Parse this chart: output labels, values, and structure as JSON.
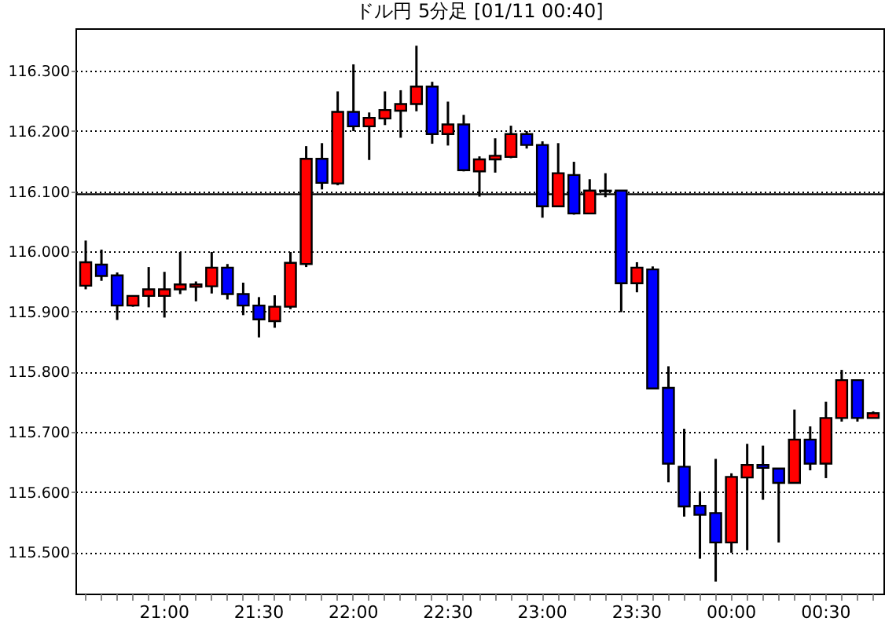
{
  "chart_data": {
    "type": "candlestick",
    "title": "ドル円 5分足 [01/11 00:40]",
    "categories": [
      null,
      null,
      null,
      null,
      null,
      "21:00",
      null,
      null,
      null,
      null,
      null,
      "21:30",
      null,
      null,
      null,
      null,
      null,
      "22:00",
      null,
      null,
      null,
      null,
      null,
      "22:30",
      null,
      null,
      null,
      null,
      null,
      "23:00",
      null,
      null,
      null,
      null,
      null,
      "23:30",
      null,
      null,
      null,
      null,
      null,
      "00:00",
      null,
      null,
      null,
      null,
      null,
      "00:30",
      null,
      null,
      null
    ],
    "ohlc": [
      [
        115.943,
        116.018,
        115.937,
        115.982
      ],
      [
        115.978,
        116.003,
        115.951,
        115.959
      ],
      [
        115.96,
        115.965,
        115.886,
        115.91
      ],
      [
        115.91,
        115.926,
        115.908,
        115.926
      ],
      [
        115.926,
        115.974,
        115.907,
        115.937
      ],
      [
        115.926,
        115.966,
        115.89,
        115.937
      ],
      [
        115.937,
        115.999,
        115.929,
        115.945
      ],
      [
        115.941,
        115.95,
        115.917,
        115.945
      ],
      [
        115.942,
        115.999,
        115.93,
        115.973
      ],
      [
        115.973,
        115.979,
        115.92,
        115.929
      ],
      [
        115.929,
        115.948,
        115.894,
        115.91
      ],
      [
        115.91,
        115.924,
        115.857,
        115.887
      ],
      [
        115.884,
        115.927,
        115.873,
        115.908
      ],
      [
        115.908,
        115.999,
        115.904,
        115.981
      ],
      [
        115.979,
        116.175,
        115.974,
        116.154
      ],
      [
        116.154,
        116.18,
        116.103,
        116.114
      ],
      [
        116.113,
        116.266,
        116.11,
        116.232
      ],
      [
        116.232,
        116.311,
        116.2,
        116.208
      ],
      [
        116.208,
        116.231,
        116.152,
        116.222
      ],
      [
        116.221,
        116.266,
        116.21,
        116.235
      ],
      [
        116.234,
        116.268,
        116.189,
        116.245
      ],
      [
        116.245,
        116.342,
        116.233,
        116.274
      ],
      [
        116.274,
        116.282,
        116.179,
        116.195
      ],
      [
        116.195,
        116.249,
        116.176,
        116.211
      ],
      [
        116.211,
        116.227,
        116.133,
        116.135
      ],
      [
        116.133,
        116.158,
        116.091,
        116.153
      ],
      [
        116.153,
        116.188,
        116.131,
        116.159
      ],
      [
        116.157,
        116.209,
        116.155,
        116.195
      ],
      [
        116.195,
        116.2,
        116.171,
        116.177
      ],
      [
        116.177,
        116.183,
        116.056,
        116.075
      ],
      [
        116.075,
        116.18,
        116.075,
        116.13
      ],
      [
        116.127,
        116.149,
        116.061,
        116.063
      ],
      [
        116.063,
        116.12,
        116.063,
        116.101
      ],
      [
        116.1,
        116.13,
        116.09,
        116.101
      ],
      [
        116.101,
        116.101,
        115.899,
        115.947
      ],
      [
        115.947,
        115.982,
        115.932,
        115.973
      ],
      [
        115.97,
        115.975,
        115.772,
        115.772
      ],
      [
        115.773,
        115.809,
        115.616,
        115.647
      ],
      [
        115.642,
        115.705,
        115.559,
        115.576
      ],
      [
        115.577,
        115.601,
        115.489,
        115.562
      ],
      [
        115.565,
        115.655,
        115.451,
        115.516
      ],
      [
        115.516,
        115.631,
        115.499,
        115.625
      ],
      [
        115.624,
        115.68,
        115.503,
        115.645
      ],
      [
        115.645,
        115.677,
        115.587,
        115.64
      ],
      [
        115.639,
        115.639,
        115.516,
        115.615
      ],
      [
        115.615,
        115.737,
        115.615,
        115.687
      ],
      [
        115.687,
        115.709,
        115.636,
        115.647
      ],
      [
        115.647,
        115.75,
        115.623,
        115.723
      ],
      [
        115.723,
        115.803,
        115.717,
        115.786
      ],
      [
        115.786,
        115.786,
        115.717,
        115.723
      ],
      [
        115.723,
        115.734,
        115.723,
        115.731
      ]
    ],
    "colors": [
      "#ff0000",
      "#0000ff",
      "#0000ff",
      "#ff0000",
      "#ff0000",
      "#ff0000",
      "#ff0000",
      "#ff0000",
      "#ff0000",
      "#0000ff",
      "#0000ff",
      "#0000ff",
      "#ff0000",
      "#ff0000",
      "#ff0000",
      "#0000ff",
      "#ff0000",
      "#0000ff",
      "#ff0000",
      "#ff0000",
      "#ff0000",
      "#ff0000",
      "#0000ff",
      "#ff0000",
      "#0000ff",
      "#ff0000",
      "#ff0000",
      "#ff0000",
      "#0000ff",
      "#0000ff",
      "#ff0000",
      "#0000ff",
      "#ff0000",
      "#ff0000",
      "#0000ff",
      "#ff0000",
      "#0000ff",
      "#0000ff",
      "#0000ff",
      "#0000ff",
      "#0000ff",
      "#ff0000",
      "#ff0000",
      "#0000ff",
      "#0000ff",
      "#ff0000",
      "#0000ff",
      "#ff0000",
      "#ff0000",
      "#0000ff",
      "#ff0000"
    ],
    "ylim": [
      115.431,
      116.371
    ],
    "yticks": [
      {
        "value": 115.5,
        "label": "115.500"
      },
      {
        "value": 115.6,
        "label": "115.600"
      },
      {
        "value": 115.7,
        "label": "115.700"
      },
      {
        "value": 115.8,
        "label": "115.800"
      },
      {
        "value": 115.9,
        "label": "115.900"
      },
      {
        "value": 116.0,
        "label": "116.000"
      },
      {
        "value": 116.1,
        "label": "116.100"
      },
      {
        "value": 116.2,
        "label": "116.200"
      },
      {
        "value": 116.3,
        "label": "116.300"
      }
    ],
    "ref_lines": [
      {
        "axis": "y",
        "value": 116.095,
        "color": "#000000",
        "line_style": "solid"
      }
    ],
    "grid": "y"
  }
}
